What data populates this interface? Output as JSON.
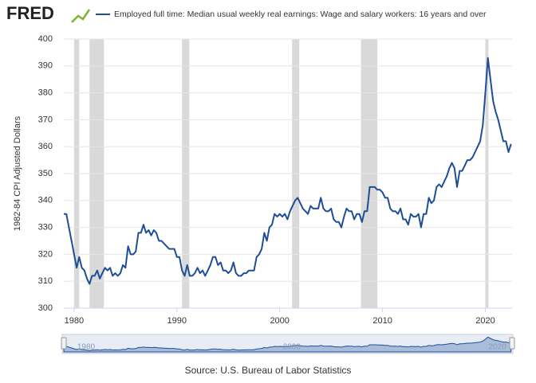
{
  "chart_data": {
    "type": "line",
    "logo": "FRED",
    "y_label": "1982-84 CPI Adjusted Dollars",
    "source": "Source: U.S. Bureau of Labor Statistics",
    "xlim": [
      1979,
      2022.6
    ],
    "xticks": [
      1980,
      1990,
      2000,
      2010,
      2020
    ],
    "ylim": [
      300,
      400
    ],
    "yticks": [
      300,
      310,
      320,
      330,
      340,
      350,
      360,
      370,
      380,
      390,
      400
    ],
    "grid": true,
    "recessions": [
      [
        1980.0,
        1980.5
      ],
      [
        1981.5,
        1982.9
      ],
      [
        1990.5,
        1991.2
      ],
      [
        2001.2,
        2001.9
      ],
      [
        2007.9,
        2009.5
      ],
      [
        2020.0,
        2020.3
      ]
    ],
    "recession_color": "#d9d9d9",
    "navigator_xticks": [
      1980,
      2000,
      2020
    ],
    "x": [
      1979.0,
      1979.25,
      1979.5,
      1979.75,
      1980.0,
      1980.25,
      1980.5,
      1980.75,
      1981.0,
      1981.25,
      1981.5,
      1981.75,
      1982.0,
      1982.25,
      1982.5,
      1982.75,
      1983.0,
      1983.25,
      1983.5,
      1983.75,
      1984.0,
      1984.25,
      1984.5,
      1984.75,
      1985.0,
      1985.25,
      1985.5,
      1985.75,
      1986.0,
      1986.25,
      1986.5,
      1986.75,
      1987.0,
      1987.25,
      1987.5,
      1987.75,
      1988.0,
      1988.25,
      1988.5,
      1988.75,
      1989.0,
      1989.25,
      1989.5,
      1989.75,
      1990.0,
      1990.25,
      1990.5,
      1990.75,
      1991.0,
      1991.25,
      1991.5,
      1991.75,
      1992.0,
      1992.25,
      1992.5,
      1992.75,
      1993.0,
      1993.25,
      1993.5,
      1993.75,
      1994.0,
      1994.25,
      1994.5,
      1994.75,
      1995.0,
      1995.25,
      1995.5,
      1995.75,
      1996.0,
      1996.25,
      1996.5,
      1996.75,
      1997.0,
      1997.25,
      1997.5,
      1997.75,
      1998.0,
      1998.25,
      1998.5,
      1998.75,
      1999.0,
      1999.25,
      1999.5,
      1999.75,
      2000.0,
      2000.25,
      2000.5,
      2000.75,
      2001.0,
      2001.25,
      2001.5,
      2001.75,
      2002.0,
      2002.25,
      2002.5,
      2002.75,
      2003.0,
      2003.25,
      2003.5,
      2003.75,
      2004.0,
      2004.25,
      2004.5,
      2004.75,
      2005.0,
      2005.25,
      2005.5,
      2005.75,
      2006.0,
      2006.25,
      2006.5,
      2006.75,
      2007.0,
      2007.25,
      2007.5,
      2007.75,
      2008.0,
      2008.25,
      2008.5,
      2008.75,
      2009.0,
      2009.25,
      2009.5,
      2009.75,
      2010.0,
      2010.25,
      2010.5,
      2010.75,
      2011.0,
      2011.25,
      2011.5,
      2011.75,
      2012.0,
      2012.25,
      2012.5,
      2012.75,
      2013.0,
      2013.25,
      2013.5,
      2013.75,
      2014.0,
      2014.25,
      2014.5,
      2014.75,
      2015.0,
      2015.25,
      2015.5,
      2015.75,
      2016.0,
      2016.25,
      2016.5,
      2016.75,
      2017.0,
      2017.25,
      2017.5,
      2017.75,
      2018.0,
      2018.25,
      2018.5,
      2018.75,
      2019.0,
      2019.25,
      2019.5,
      2019.75,
      2020.0,
      2020.25,
      2020.5,
      2020.75,
      2021.0,
      2021.25,
      2021.5,
      2021.75,
      2022.0,
      2022.25,
      2022.5
    ],
    "series": [
      {
        "name": "Employed full time: Median usual weekly real earnings: Wage and salary workers: 16 years and over",
        "color": "#1f4e96",
        "values": [
          335,
          335,
          330,
          325,
          320,
          315,
          319,
          315,
          314,
          311,
          309,
          312,
          312,
          314,
          311,
          313,
          315,
          314,
          315,
          312,
          313,
          312,
          313,
          316,
          315,
          323,
          320,
          320,
          321,
          328,
          328,
          331,
          328,
          329,
          327,
          329,
          328,
          325,
          325,
          324,
          323,
          322,
          322,
          322,
          319,
          319,
          314,
          312,
          316,
          312,
          312,
          313,
          315,
          313,
          314,
          312,
          314,
          316,
          319,
          319,
          316,
          317,
          314,
          314,
          313,
          314,
          317,
          313,
          312,
          312,
          313,
          313,
          314,
          314,
          314,
          319,
          320,
          322,
          328,
          325,
          330,
          331,
          335,
          334,
          335,
          334,
          335,
          333,
          336,
          338,
          340,
          341,
          339,
          337,
          336,
          335,
          338,
          337,
          337,
          337,
          341,
          337,
          336,
          336,
          337,
          333,
          332,
          332,
          330,
          334,
          337,
          336,
          336,
          333,
          335,
          335,
          332,
          336,
          336,
          345,
          345,
          345,
          344,
          344,
          343,
          341,
          341,
          337,
          336,
          336,
          335,
          337,
          333,
          333,
          331,
          335,
          334,
          334,
          335,
          330,
          335,
          335,
          341,
          339,
          340,
          345,
          346,
          345,
          347,
          349,
          352,
          354,
          352,
          345,
          351,
          351,
          353,
          355,
          355,
          356,
          358,
          360,
          362,
          368,
          380,
          393,
          385,
          377,
          373,
          370,
          366,
          362,
          362,
          358,
          361
        ]
      }
    ]
  }
}
